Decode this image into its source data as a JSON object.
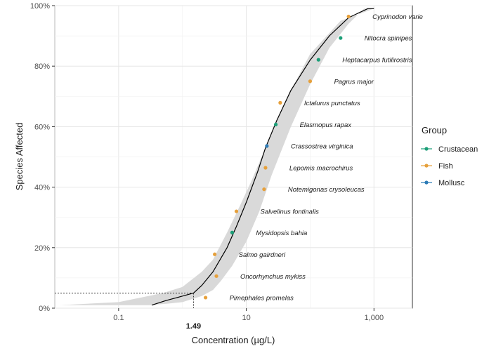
{
  "chart_data": {
    "type": "scatter",
    "xlabel": "Concentration (µg/L)",
    "ylabel": "Species Affected",
    "x_scale": "log10",
    "xlim": [
      0.01,
      4000
    ],
    "ylim": [
      0,
      100
    ],
    "x_ticks": [
      {
        "value": 0.1,
        "label": "0.1"
      },
      {
        "value": 10,
        "label": "10"
      },
      {
        "value": 1000,
        "label": "1,000"
      }
    ],
    "y_ticks": [
      {
        "value": 0,
        "label": "0%"
      },
      {
        "value": 20,
        "label": "20%"
      },
      {
        "value": 40,
        "label": "40%"
      },
      {
        "value": 60,
        "label": "60%"
      },
      {
        "value": 80,
        "label": "80%"
      },
      {
        "value": 100,
        "label": "100%"
      }
    ],
    "hc_marker": {
      "x": 1.49,
      "y": 5,
      "label": "1.49"
    },
    "legend": {
      "title": "Group",
      "position": "right",
      "entries": [
        {
          "name": "Crustacean",
          "color": "#1b9e77"
        },
        {
          "name": "Fish",
          "color": "#e6a03b"
        },
        {
          "name": "Mollusc",
          "color": "#2c7bb6"
        }
      ]
    },
    "points": [
      {
        "species": "Pimephales promelas",
        "group": "Fish",
        "x": 2.3,
        "y": 3.5
      },
      {
        "species": "Oncorhynchus mykiss",
        "group": "Fish",
        "x": 3.4,
        "y": 10.6
      },
      {
        "species": "Salmo gairdneri",
        "group": "Fish",
        "x": 3.2,
        "y": 17.8
      },
      {
        "species": "Mysidopsis bahia",
        "group": "Crustacean",
        "x": 6.0,
        "y": 25.0
      },
      {
        "species": "Salvelinus fontinalis",
        "group": "Fish",
        "x": 7.0,
        "y": 32.0
      },
      {
        "species": "Notemigonas crysoleucas",
        "group": "Fish",
        "x": 19.0,
        "y": 39.3
      },
      {
        "species": "Lepomis macrochirus",
        "group": "Fish",
        "x": 20.0,
        "y": 46.4
      },
      {
        "species": "Crassostrea virginica",
        "group": "Mollusc",
        "x": 21.0,
        "y": 53.6
      },
      {
        "species": "Elasmopus rapax",
        "group": "Crustacean",
        "x": 29.0,
        "y": 60.7
      },
      {
        "species": "Ictalurus punctatus",
        "group": "Fish",
        "x": 34.0,
        "y": 67.9
      },
      {
        "species": "Pagrus major",
        "group": "Fish",
        "x": 100.0,
        "y": 75.0
      },
      {
        "species": "Heptacarpus futilirostris",
        "group": "Crustacean",
        "x": 135.0,
        "y": 82.1
      },
      {
        "species": "Nitocra spinipes",
        "group": "Crustacean",
        "x": 300.0,
        "y": 89.3
      },
      {
        "species": "Cyprinodon varie",
        "group": "Fish",
        "x": 400.0,
        "y": 96.4
      }
    ],
    "fit_curve": [
      {
        "x": 0.33,
        "y": 1
      },
      {
        "x": 0.55,
        "y": 2.5
      },
      {
        "x": 1.0,
        "y": 4
      },
      {
        "x": 1.49,
        "y": 5
      },
      {
        "x": 2.0,
        "y": 7.5
      },
      {
        "x": 3.0,
        "y": 12
      },
      {
        "x": 5.0,
        "y": 20
      },
      {
        "x": 7.0,
        "y": 27
      },
      {
        "x": 10.0,
        "y": 35
      },
      {
        "x": 15.0,
        "y": 45
      },
      {
        "x": 20.0,
        "y": 53
      },
      {
        "x": 30.0,
        "y": 62
      },
      {
        "x": 50.0,
        "y": 72
      },
      {
        "x": 100.0,
        "y": 82
      },
      {
        "x": 200.0,
        "y": 90
      },
      {
        "x": 400.0,
        "y": 96
      },
      {
        "x": 800.0,
        "y": 99
      },
      {
        "x": 1000.0,
        "y": 99
      }
    ],
    "confidence_band": {
      "lower": [
        {
          "x": 0.012,
          "y": 1
        },
        {
          "x": 0.1,
          "y": 2
        },
        {
          "x": 0.5,
          "y": 5
        },
        {
          "x": 1.0,
          "y": 7
        },
        {
          "x": 2.0,
          "y": 12
        },
        {
          "x": 3.0,
          "y": 16
        },
        {
          "x": 5.0,
          "y": 25
        },
        {
          "x": 8.0,
          "y": 34
        },
        {
          "x": 12.0,
          "y": 42
        },
        {
          "x": 20.0,
          "y": 53
        },
        {
          "x": 30.0,
          "y": 62
        },
        {
          "x": 50.0,
          "y": 72
        },
        {
          "x": 100.0,
          "y": 84
        },
        {
          "x": 300.0,
          "y": 95
        },
        {
          "x": 1000.0,
          "y": 99
        },
        {
          "x": 3000.0,
          "y": 99
        }
      ],
      "upper": [
        {
          "x": 0.012,
          "y": 1
        },
        {
          "x": 0.3,
          "y": 1
        },
        {
          "x": 0.6,
          "y": 1.5
        },
        {
          "x": 1.0,
          "y": 2
        },
        {
          "x": 2.0,
          "y": 4
        },
        {
          "x": 3.0,
          "y": 6
        },
        {
          "x": 4.0,
          "y": 9
        },
        {
          "x": 6.0,
          "y": 14
        },
        {
          "x": 10.0,
          "y": 22
        },
        {
          "x": 16.0,
          "y": 32
        },
        {
          "x": 25.0,
          "y": 44
        },
        {
          "x": 50.0,
          "y": 60
        },
        {
          "x": 100.0,
          "y": 74
        },
        {
          "x": 200.0,
          "y": 86
        },
        {
          "x": 400.0,
          "y": 94
        },
        {
          "x": 700.0,
          "y": 99
        },
        {
          "x": 3000.0,
          "y": 99
        }
      ]
    }
  }
}
